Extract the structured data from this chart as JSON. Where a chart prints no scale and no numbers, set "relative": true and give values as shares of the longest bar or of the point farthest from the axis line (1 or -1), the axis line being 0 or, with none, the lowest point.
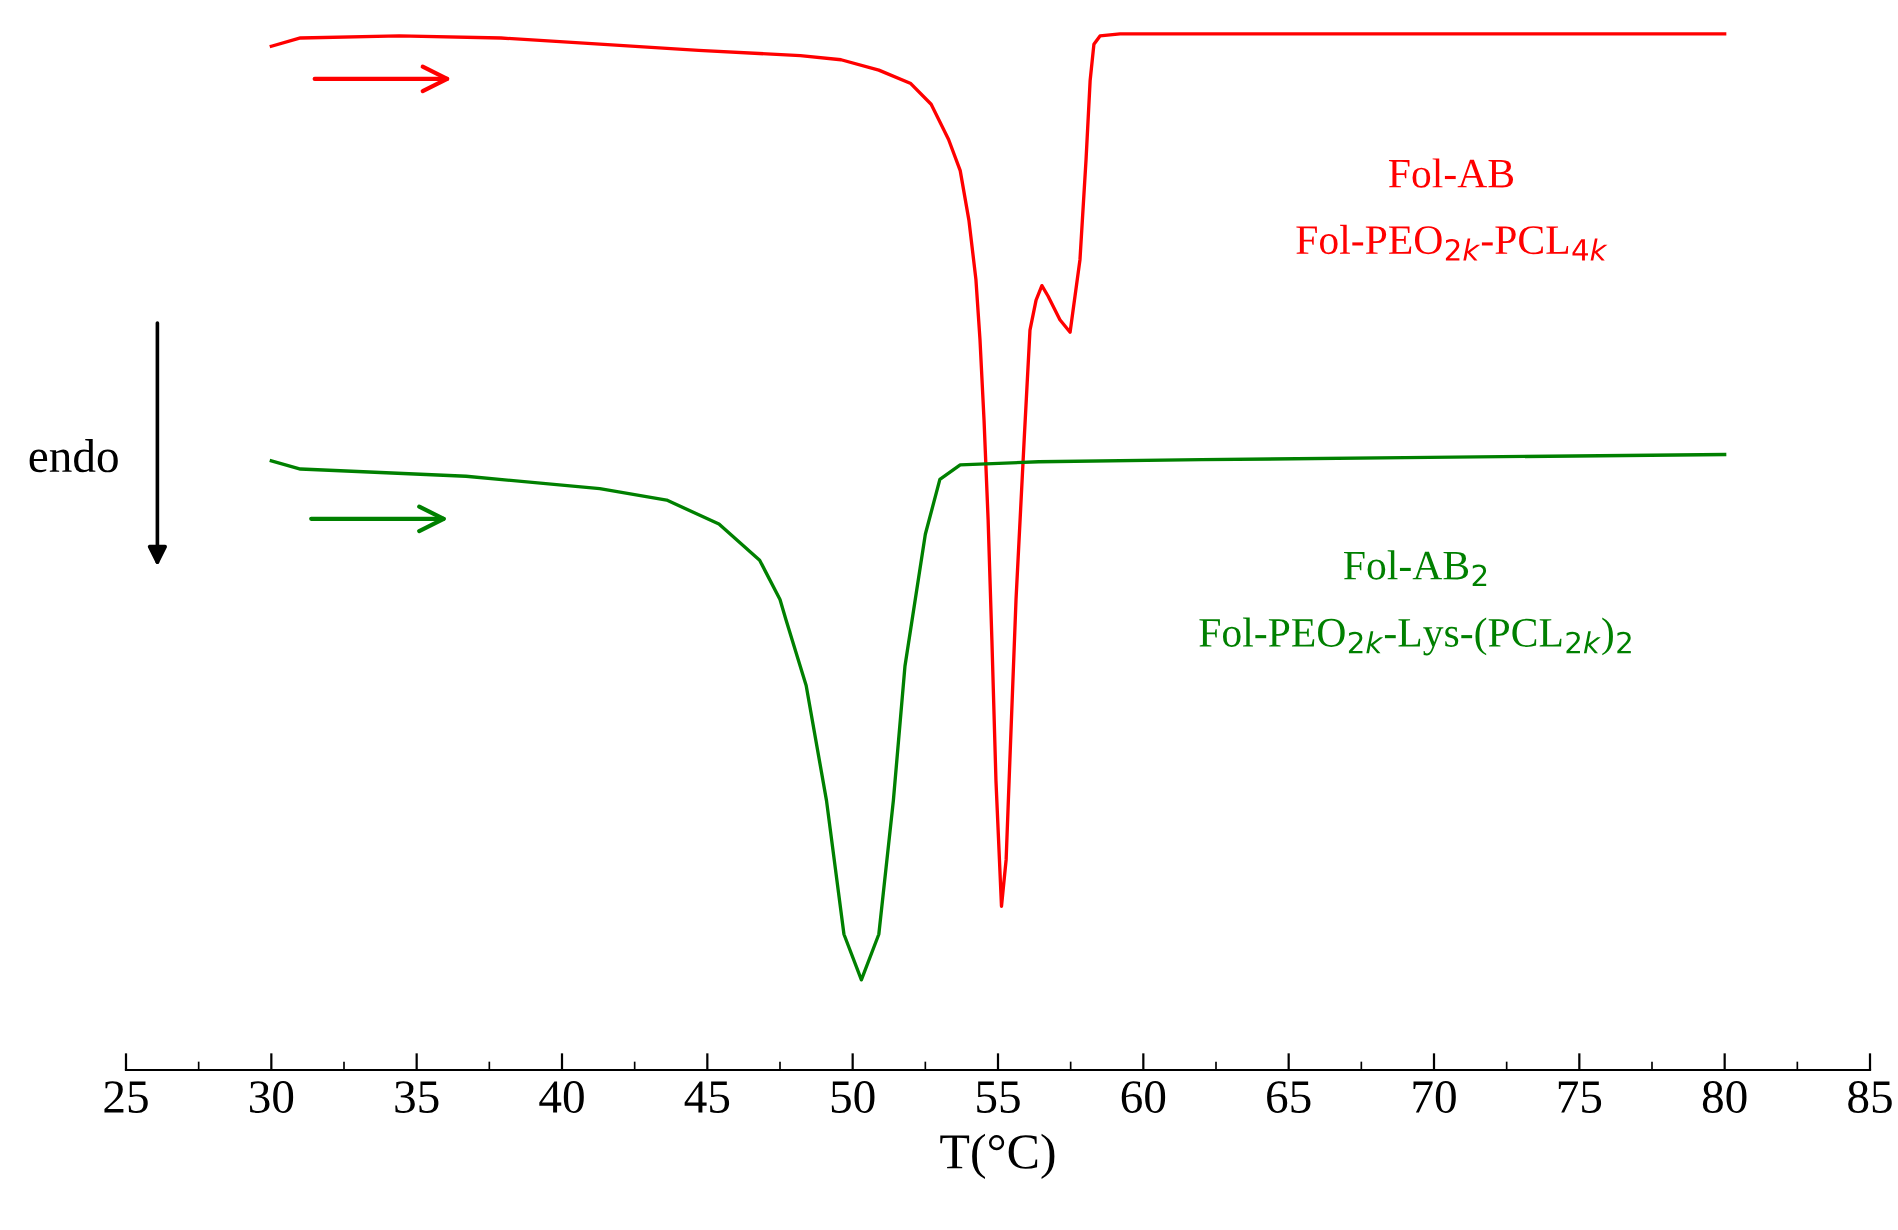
{
  "chart_data": {
    "type": "line",
    "relative": true,
    "xlabel": "T(°C)",
    "xlim": [
      25,
      85
    ],
    "xticks": [
      25,
      30,
      35,
      40,
      45,
      50,
      55,
      60,
      65,
      70,
      75,
      80,
      85
    ],
    "tick_labels": "x",
    "grid": false,
    "marker": "none",
    "line_style": "solid",
    "series": [
      {
        "name": "Fol-AB\nFol-PEO$_{2k}$-PCL$_{4k}$",
        "color": "#ff0000",
        "x": [
          30.0,
          31.0,
          34.4,
          37.9,
          41.3,
          44.7,
          48.2,
          49.6,
          50.9,
          52.0,
          52.7,
          53.3,
          53.7,
          54.0,
          54.24,
          54.38,
          54.52,
          54.66,
          54.79,
          54.93,
          55.12,
          55.28,
          55.41,
          55.62,
          55.9,
          56.1,
          56.31,
          56.51,
          56.72,
          57.13,
          57.48,
          57.82,
          58.03,
          58.17,
          58.3,
          58.51,
          59.2,
          62,
          70,
          80
        ],
        "values": [
          0.988,
          0.996,
          0.998,
          0.996,
          0.99,
          0.984,
          0.979,
          0.975,
          0.965,
          0.952,
          0.932,
          0.898,
          0.868,
          0.82,
          0.763,
          0.705,
          0.627,
          0.531,
          0.415,
          0.279,
          0.158,
          0.203,
          0.3,
          0.454,
          0.608,
          0.714,
          0.743,
          0.757,
          0.747,
          0.724,
          0.712,
          0.782,
          0.879,
          0.955,
          0.99,
          0.998,
          1.0,
          1.0,
          1.0,
          1.0
        ]
      },
      {
        "name": "Fol-AB$_{2}$\nFol-PEO$_{2k}$-Lys-(PCL$_{2k}$)$_{2}$",
        "color": "#008000",
        "x": [
          30.0,
          31.0,
          36.7,
          41.3,
          43.6,
          45.4,
          46.8,
          47.5,
          47.7,
          48.4,
          49.1,
          49.7,
          50.3,
          50.9,
          51.4,
          51.8,
          52.5,
          53.0,
          53.7,
          56.4,
          62,
          69,
          80
        ],
        "values": [
          0.588,
          0.58,
          0.573,
          0.561,
          0.55,
          0.527,
          0.492,
          0.454,
          0.435,
          0.371,
          0.26,
          0.131,
          0.087,
          0.131,
          0.26,
          0.39,
          0.517,
          0.57,
          0.584,
          0.587,
          0.589,
          0.591,
          0.594
        ]
      }
    ],
    "annotations": [
      "endo"
    ]
  }
}
